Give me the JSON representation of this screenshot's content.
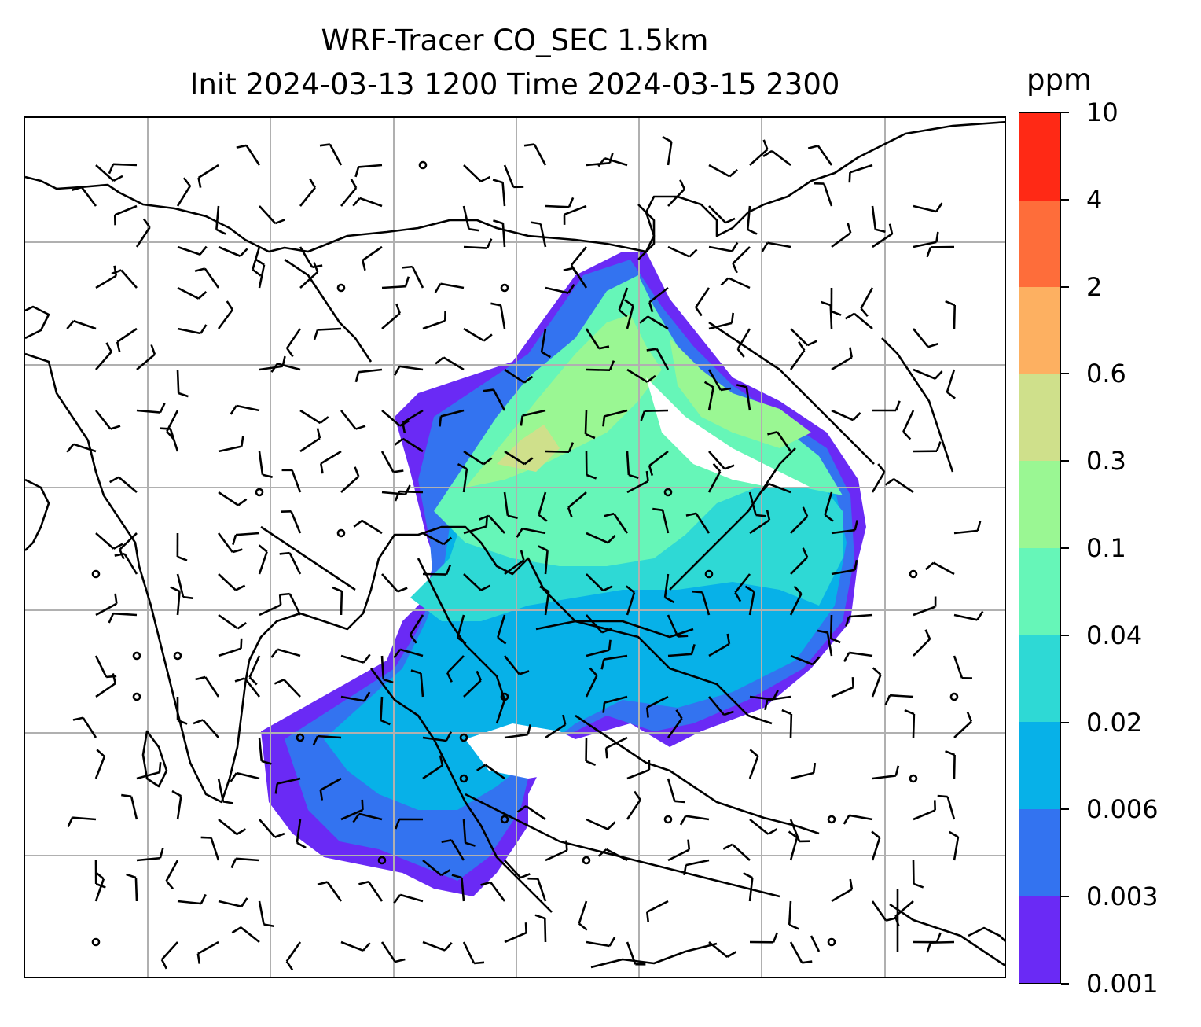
{
  "title": {
    "line1": "WRF-Tracer CO_SEC 1.5km",
    "line2": "Init 2024-03-13 1200 Time 2024-03-15 2300"
  },
  "colorbar": {
    "unit": "ppm",
    "levels": [
      "0.001",
      "0.003",
      "0.006",
      "0.02",
      "0.04",
      "0.1",
      "0.3",
      "0.6",
      "2",
      "4",
      "10"
    ],
    "colors": [
      "#6a2af5",
      "#3373f0",
      "#07b1e8",
      "#2ed9d5",
      "#66f6b8",
      "#9af793",
      "#cfe08b",
      "#fdb061",
      "#fe6d3a",
      "#ff2915"
    ]
  },
  "map": {
    "gridlines": true,
    "field": "CO_SEC tracer concentration at 1.5km",
    "overlays": [
      "coastlines",
      "country borders",
      "wind barbs"
    ],
    "coastline_color": "#000000",
    "grid_color": "#b0b0b0"
  }
}
